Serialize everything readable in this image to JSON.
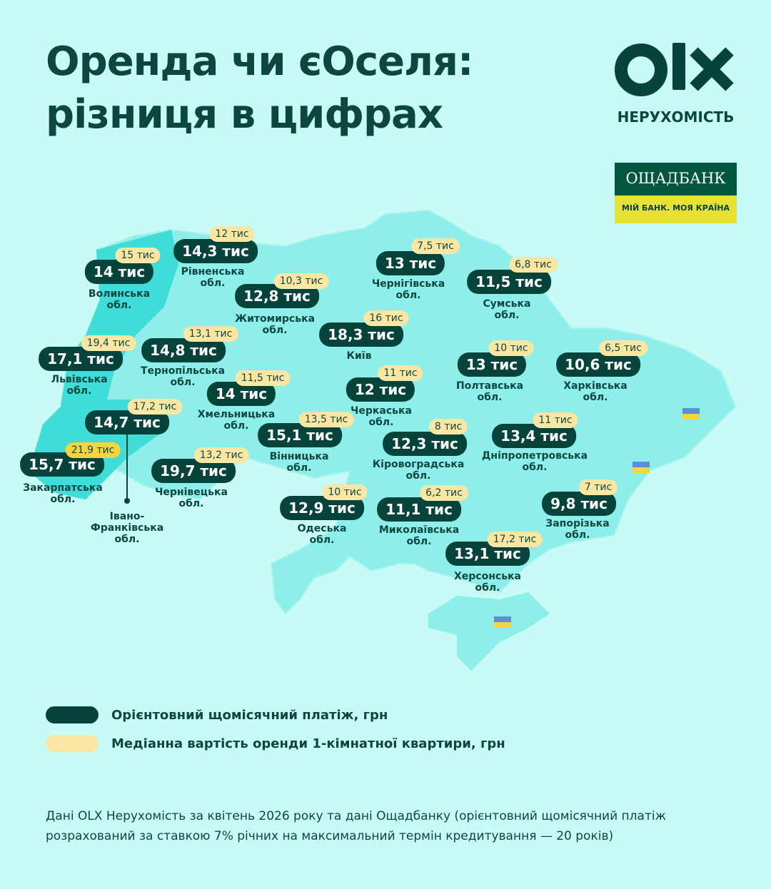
{
  "header": {
    "title_lines": [
      "Оренда чи єОселя:",
      "різниця в цифрах"
    ]
  },
  "logos": {
    "olx_caption": "НЕРУХОМІСТЬ",
    "bank_name": "ОЩАДБАНК",
    "bank_slogan": "МІЙ БАНК. МОЯ КРАЇНА"
  },
  "regions": [
    {
      "name_lines": [
        "Волинська",
        "обл."
      ],
      "payment": "14 тис",
      "rent": "15 тис"
    },
    {
      "name_lines": [
        "Рівненська",
        "обл."
      ],
      "payment": "14,3 тис",
      "rent": "12 тис"
    },
    {
      "name_lines": [
        "Житомирська",
        "обл."
      ],
      "payment": "12,8 тис",
      "rent": "10,3 тис"
    },
    {
      "name_lines": [
        "Чернігівська",
        "обл."
      ],
      "payment": "13 тис",
      "rent": "7,5 тис"
    },
    {
      "name_lines": [
        "Сумська",
        "обл."
      ],
      "payment": "11,5 тис",
      "rent": "6,8 тис"
    },
    {
      "name_lines": [
        "Львівська",
        "обл."
      ],
      "payment": "17,1 тис",
      "rent": "19,4 тис"
    },
    {
      "name_lines": [
        "Тернопільська",
        "обл."
      ],
      "payment": "14,8 тис",
      "rent": "13,1 тис"
    },
    {
      "name_lines": [
        "Київ"
      ],
      "payment": "18,3 тис",
      "rent": "16 тис"
    },
    {
      "name_lines": [
        "Хмельницька",
        "обл."
      ],
      "payment": "14 тис",
      "rent": "11,5 тис"
    },
    {
      "name_lines": [
        "Черкаська",
        "обл."
      ],
      "payment": "12 тис",
      "rent": "11 тис"
    },
    {
      "name_lines": [
        "Полтавська",
        "обл."
      ],
      "payment": "13 тис",
      "rent": "10 тис"
    },
    {
      "name_lines": [
        "Харківська",
        "обл."
      ],
      "payment": "10,6 тис",
      "rent": "6,5 тис"
    },
    {
      "name_lines": [
        "Івано-",
        "Франківська",
        "обл."
      ],
      "payment": "14,7 тис",
      "rent": "17,2 тис"
    },
    {
      "name_lines": [
        "Вінницька",
        "обл."
      ],
      "payment": "15,1 тис",
      "rent": "13,5 тис"
    },
    {
      "name_lines": [
        "Кіровоградська",
        "обл."
      ],
      "payment": "12,3 тис",
      "rent": "8 тис"
    },
    {
      "name_lines": [
        "Дніпропетровська",
        "обл."
      ],
      "payment": "13,4 тис",
      "rent": "11 тис"
    },
    {
      "name_lines": [
        "Закарпатська",
        "обл."
      ],
      "payment": "15,7 тис",
      "rent": "21,9 тис"
    },
    {
      "name_lines": [
        "Чернівецька",
        "обл."
      ],
      "payment": "19,7 тис",
      "rent": "13,2 тис"
    },
    {
      "name_lines": [
        "Одеська",
        "обл."
      ],
      "payment": "12,9 тис",
      "rent": "10 тис"
    },
    {
      "name_lines": [
        "Миколаївська",
        "обл."
      ],
      "payment": "11,1 тис",
      "rent": "6,2 тис"
    },
    {
      "name_lines": [
        "Запорізька",
        "обл."
      ],
      "payment": "9,8 тис",
      "rent": "7 тис"
    },
    {
      "name_lines": [
        "Херсонська",
        "обл."
      ],
      "payment": "13,1 тис",
      "rent": "17,2 тис"
    }
  ],
  "legend": [
    "Орієнтовний щомісячний платіж, грн",
    "Медіанна вартість оренди 1-кімнатної квартири, грн"
  ],
  "footer_lines": [
    "Дані OLX Нерухомість за квітень 2026 року та дані Ощадбанку (орієнтовний щомісячний платіж",
    "розрахований за ставкою 7% річних на максимальний термін кредитування — 20 років)"
  ]
}
